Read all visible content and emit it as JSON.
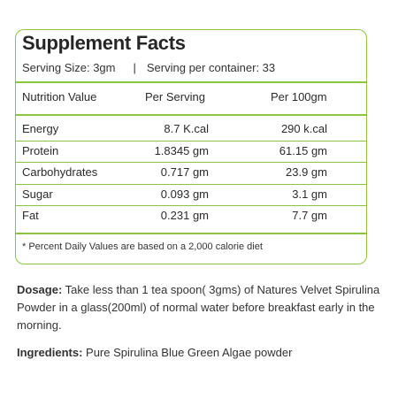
{
  "facts": {
    "title": "Supplement Facts",
    "serving_size": "Serving Size: 3gm",
    "separator": "|",
    "servings_per_container": "Serving per container: 33",
    "columns": [
      "Nutrition Value",
      "Per Serving",
      "Per 100gm"
    ],
    "rows": [
      {
        "name": "Energy",
        "per_serving": "8.7 K.cal",
        "per_100g": "290 k.cal"
      },
      {
        "name": "Protein",
        "per_serving": "1.8345 gm",
        "per_100g": "61.15 gm"
      },
      {
        "name": "Carbohydrates",
        "per_serving": "0.717 gm",
        "per_100g": "23.9 gm"
      },
      {
        "name": "Sugar",
        "per_serving": "0.093 gm",
        "per_100g": "3.1 gm"
      },
      {
        "name": "Fat",
        "per_serving": "0.231 gm",
        "per_100g": "7.7 gm"
      }
    ],
    "footnote": "* Percent Daily Values are based on a 2,000 calorie diet"
  },
  "dosage": {
    "label": "Dosage:",
    "text": " Take less than 1 tea spoon( 3gms) of Natures Velvet Spirulina Powder in a glass(200ml) of normal water before breakfast early in the morning."
  },
  "ingredients": {
    "label": "Ingredients:",
    "text": " Pure Spirulina Blue Green Algae powder"
  },
  "colors": {
    "accent": "#8cc63f",
    "text": "#2b2b2b"
  }
}
